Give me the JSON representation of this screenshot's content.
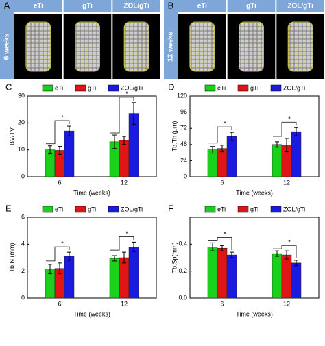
{
  "image_panels": [
    {
      "label": "A",
      "columns": [
        "eTi",
        "gTi",
        "ZOL/gTi"
      ],
      "row_label": "6 weeks"
    },
    {
      "label": "B",
      "columns": [
        "eTi",
        "gTi",
        "ZOL/gTi"
      ],
      "row_label": "12 weeks"
    }
  ],
  "chart_data": [
    {
      "type": "bar",
      "panel_label": "C",
      "xlabel": "Time (weeks)",
      "ylabel": "BV/TV",
      "categories": [
        "6",
        "12"
      ],
      "series": [
        {
          "name": "eTi",
          "color": "#19d11a",
          "values": [
            10,
            13
          ],
          "errors": [
            1.5,
            2.5
          ]
        },
        {
          "name": "gTi",
          "color": "#e01515",
          "values": [
            9.8,
            13.5
          ],
          "errors": [
            1.5,
            1.5
          ]
        },
        {
          "name": "ZOL/gTi",
          "color": "#1a1ae0",
          "values": [
            17,
            23.5
          ],
          "errors": [
            1.8,
            4
          ]
        }
      ],
      "ylim": [
        0,
        30
      ],
      "yticks": [
        0,
        10,
        20,
        30
      ],
      "annotations": [
        "*",
        "*"
      ]
    },
    {
      "type": "bar",
      "panel_label": "D",
      "xlabel": "Time (weeks)",
      "ylabel": "Tb.Th (μm)",
      "categories": [
        "6",
        "12"
      ],
      "series": [
        {
          "name": "eTi",
          "color": "#19d11a",
          "values": [
            40,
            48
          ],
          "errors": [
            5,
            4
          ]
        },
        {
          "name": "gTi",
          "color": "#e01515",
          "values": [
            42,
            47
          ],
          "errors": [
            5,
            10
          ]
        },
        {
          "name": "ZOL/gTi",
          "color": "#1a1ae0",
          "values": [
            60,
            67
          ],
          "errors": [
            6,
            6
          ]
        }
      ],
      "ylim": [
        0,
        120
      ],
      "yticks": [
        0,
        24,
        48,
        72,
        96,
        120
      ],
      "annotations": [
        "*",
        "*"
      ]
    },
    {
      "type": "bar",
      "panel_label": "E",
      "xlabel": "Time (weeks)",
      "ylabel": "Tb.N (mm)",
      "categories": [
        "6",
        "12"
      ],
      "series": [
        {
          "name": "eTi",
          "color": "#19d11a",
          "values": [
            2.15,
            2.95
          ],
          "errors": [
            0.35,
            0.2
          ]
        },
        {
          "name": "gTi",
          "color": "#e01515",
          "values": [
            2.2,
            3.0
          ],
          "errors": [
            0.4,
            0.4
          ]
        },
        {
          "name": "ZOL/gTi",
          "color": "#1a1ae0",
          "values": [
            3.1,
            3.8
          ],
          "errors": [
            0.3,
            0.35
          ]
        }
      ],
      "ylim": [
        0,
        6
      ],
      "yticks": [
        0,
        2,
        4,
        6
      ],
      "annotations": [
        "*",
        "*"
      ]
    },
    {
      "type": "bar",
      "panel_label": "F",
      "xlabel": "Time (weeks)",
      "ylabel": "Tb.Sp(mm)",
      "categories": [
        "6",
        "12"
      ],
      "series": [
        {
          "name": "eTi",
          "color": "#19d11a",
          "values": [
            0.38,
            0.33
          ],
          "errors": [
            0.03,
            0.02
          ]
        },
        {
          "name": "gTi",
          "color": "#e01515",
          "values": [
            0.37,
            0.32
          ],
          "errors": [
            0.02,
            0.03
          ]
        },
        {
          "name": "ZOL/gTi",
          "color": "#1a1ae0",
          "values": [
            0.32,
            0.26
          ],
          "errors": [
            0.02,
            0.02
          ]
        }
      ],
      "ylim": [
        0,
        0.6
      ],
      "yticks": [
        {
          "value": 0,
          "label": "0.0"
        },
        0.2,
        0.4
      ],
      "annotations": [
        "*",
        "*"
      ]
    }
  ]
}
